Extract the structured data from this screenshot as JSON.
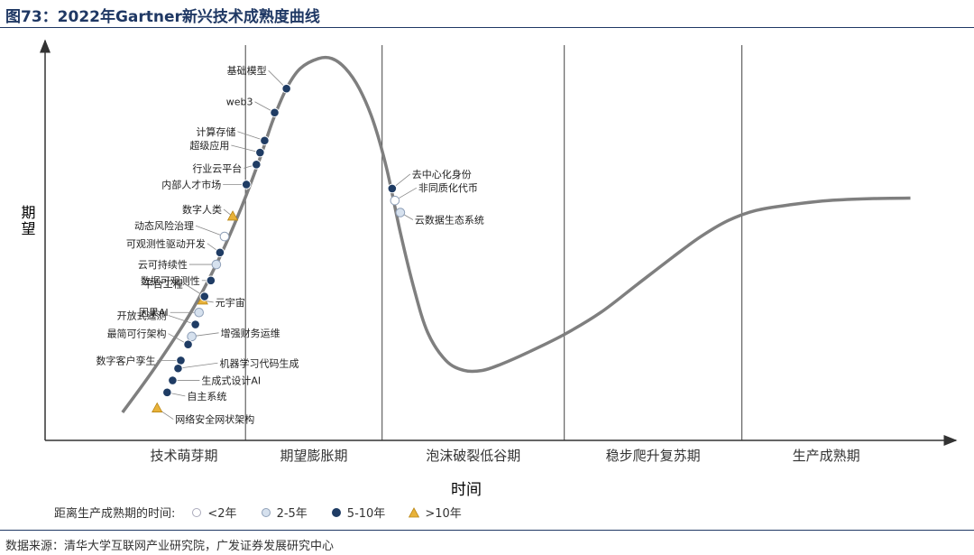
{
  "figure_title": "图73：2022年Gartner新兴技术成熟度曲线",
  "source": "数据来源：清华大学互联网产业研究院，广发证券发展研究中心",
  "colors": {
    "curve": "#7f7f7f",
    "title": "#1f3864",
    "lt2": "#ffffff",
    "y2to5": "#d6e1ee",
    "y5to10": "#1f3c64",
    "gt10": "#e8b23a"
  },
  "chart_data": {
    "type": "line",
    "title": "2022年Gartner新兴技术成熟度曲线",
    "xlabel": "时间",
    "ylabel": "期望",
    "phases": [
      "技术萌芽期",
      "期望膨胀期",
      "泡沫破裂低谷期",
      "稳步爬升复苏期",
      "生产成熟期"
    ],
    "phase_boundaries": [
      0.22,
      0.37,
      0.57,
      0.765
    ],
    "legend_title": "距离生产成熟期的时间:",
    "legend": [
      {
        "key": "lt2",
        "label": "<2年",
        "marker": "circle-white"
      },
      {
        "key": "y2to5",
        "label": "2-5年",
        "marker": "circle-light"
      },
      {
        "key": "y5to10",
        "label": "5-10年",
        "marker": "circle-dark"
      },
      {
        "key": "gt10",
        "label": ">10年",
        "marker": "triangle"
      }
    ],
    "curve": [
      [
        0.085,
        0.07
      ],
      [
        0.12,
        0.18
      ],
      [
        0.16,
        0.32
      ],
      [
        0.19,
        0.45
      ],
      [
        0.215,
        0.58
      ],
      [
        0.235,
        0.7
      ],
      [
        0.25,
        0.8
      ],
      [
        0.265,
        0.88
      ],
      [
        0.28,
        0.93
      ],
      [
        0.3,
        0.955
      ],
      [
        0.315,
        0.955
      ],
      [
        0.33,
        0.93
      ],
      [
        0.345,
        0.88
      ],
      [
        0.36,
        0.8
      ],
      [
        0.375,
        0.68
      ],
      [
        0.39,
        0.52
      ],
      [
        0.405,
        0.38
      ],
      [
        0.42,
        0.27
      ],
      [
        0.44,
        0.2
      ],
      [
        0.46,
        0.175
      ],
      [
        0.48,
        0.175
      ],
      [
        0.5,
        0.19
      ],
      [
        0.53,
        0.22
      ],
      [
        0.57,
        0.265
      ],
      [
        0.61,
        0.32
      ],
      [
        0.65,
        0.39
      ],
      [
        0.69,
        0.46
      ],
      [
        0.72,
        0.51
      ],
      [
        0.75,
        0.55
      ],
      [
        0.78,
        0.575
      ],
      [
        0.82,
        0.59
      ],
      [
        0.86,
        0.6
      ],
      [
        0.91,
        0.605
      ],
      [
        0.95,
        0.606
      ]
    ],
    "technologies": [
      {
        "name": "基础模型",
        "category": "y5to10",
        "x": 0.265,
        "y": 0.88
      },
      {
        "name": "web3",
        "category": "y5to10",
        "x": 0.252,
        "y": 0.82
      },
      {
        "name": "计算存储",
        "category": "y5to10",
        "x": 0.241,
        "y": 0.75
      },
      {
        "name": "超级应用",
        "category": "y5to10",
        "x": 0.236,
        "y": 0.72
      },
      {
        "name": "行业云平台",
        "category": "y5to10",
        "x": 0.232,
        "y": 0.69
      },
      {
        "name": "内部人才市场",
        "category": "y5to10",
        "x": 0.221,
        "y": 0.64
      },
      {
        "name": "数字人类",
        "category": "gt10",
        "x": 0.206,
        "y": 0.56
      },
      {
        "name": "动态风险治理",
        "category": "lt2",
        "x": 0.197,
        "y": 0.51
      },
      {
        "name": "可观测性驱动开发",
        "category": "y5to10",
        "x": 0.192,
        "y": 0.47
      },
      {
        "name": "云可持续性",
        "category": "y2to5",
        "x": 0.188,
        "y": 0.44
      },
      {
        "name": "数据可观测性",
        "category": "y5to10",
        "x": 0.182,
        "y": 0.4
      },
      {
        "name": "元宇宙",
        "category": "gt10",
        "x": 0.173,
        "y": 0.35
      },
      {
        "name": "平台工程",
        "category": "y5to10",
        "x": 0.175,
        "y": 0.36
      },
      {
        "name": "因果AI",
        "category": "y2to5",
        "x": 0.169,
        "y": 0.32
      },
      {
        "name": "开放式遥测",
        "category": "y5to10",
        "x": 0.165,
        "y": 0.29
      },
      {
        "name": "增强财务运维",
        "category": "y2to5",
        "x": 0.161,
        "y": 0.26
      },
      {
        "name": "最简可行架构",
        "category": "y5to10",
        "x": 0.157,
        "y": 0.24
      },
      {
        "name": "数字客户孪生",
        "category": "y5to10",
        "x": 0.149,
        "y": 0.2
      },
      {
        "name": "机器学习代码生成",
        "category": "y5to10",
        "x": 0.146,
        "y": 0.18
      },
      {
        "name": "生成式设计AI",
        "category": "y5to10",
        "x": 0.14,
        "y": 0.15
      },
      {
        "name": "自主系统",
        "category": "y5to10",
        "x": 0.134,
        "y": 0.12
      },
      {
        "name": "网络安全网状架构",
        "category": "gt10",
        "x": 0.123,
        "y": 0.08
      },
      {
        "name": "去中心化身份",
        "category": "y5to10",
        "x": 0.381,
        "y": 0.63
      },
      {
        "name": "非同质化代币",
        "category": "lt2",
        "x": 0.384,
        "y": 0.6
      },
      {
        "name": "云数据生态系统",
        "category": "y2to5",
        "x": 0.39,
        "y": 0.57
      }
    ]
  }
}
